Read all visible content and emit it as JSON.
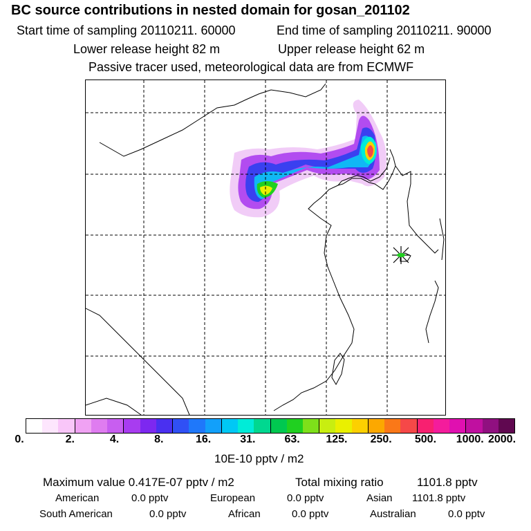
{
  "header": {
    "title": "BC  source contributions in nested domain for gosan_201102",
    "start": "Start time of sampling 20110211. 60000",
    "end": "End time of sampling 20110211. 90000",
    "lower": "Lower release height   82 m",
    "upper": "Upper release height   62 m",
    "note": "Passive tracer used, meteorological data are from ECMWF"
  },
  "colorbar": {
    "colors": [
      "#ffffff",
      "#fde6fd",
      "#f9c6f9",
      "#f0a2f3",
      "#df7cf0",
      "#c85ef0",
      "#a83cf0",
      "#7d28f0",
      "#4a30f0",
      "#3050f5",
      "#1f78fa",
      "#12a0fa",
      "#00c8f5",
      "#00ecd8",
      "#00d890",
      "#00c850",
      "#20d020",
      "#7ee01a",
      "#c8ee10",
      "#eaf000",
      "#fcd000",
      "#fca800",
      "#fa7818",
      "#f64848",
      "#f82070",
      "#f41c9c",
      "#e010b0",
      "#c010a0",
      "#901080",
      "#600850"
    ],
    "tick_labels": [
      "0.",
      "2.",
      "4.",
      "8.",
      "16.",
      "31.",
      "63.",
      "125.",
      "250.",
      "500.",
      "1000.",
      "2000."
    ],
    "units": "10E-10 pptv / m2"
  },
  "stats": {
    "max": "Maximum value  0.417E-07 pptv / m2",
    "total_label": "Total mixing ratio",
    "total_value": "1101.8 pptv",
    "regions": [
      {
        "name": "American",
        "value": "0.0 pptv"
      },
      {
        "name": "European",
        "value": "0.0 pptv"
      },
      {
        "name": "Asian",
        "value": "1101.8 pptv"
      },
      {
        "name": "South American",
        "value": "0.0 pptv"
      },
      {
        "name": "African",
        "value": "0.0 pptv"
      },
      {
        "name": "Australian",
        "value": "0.0 pptv"
      }
    ]
  }
}
